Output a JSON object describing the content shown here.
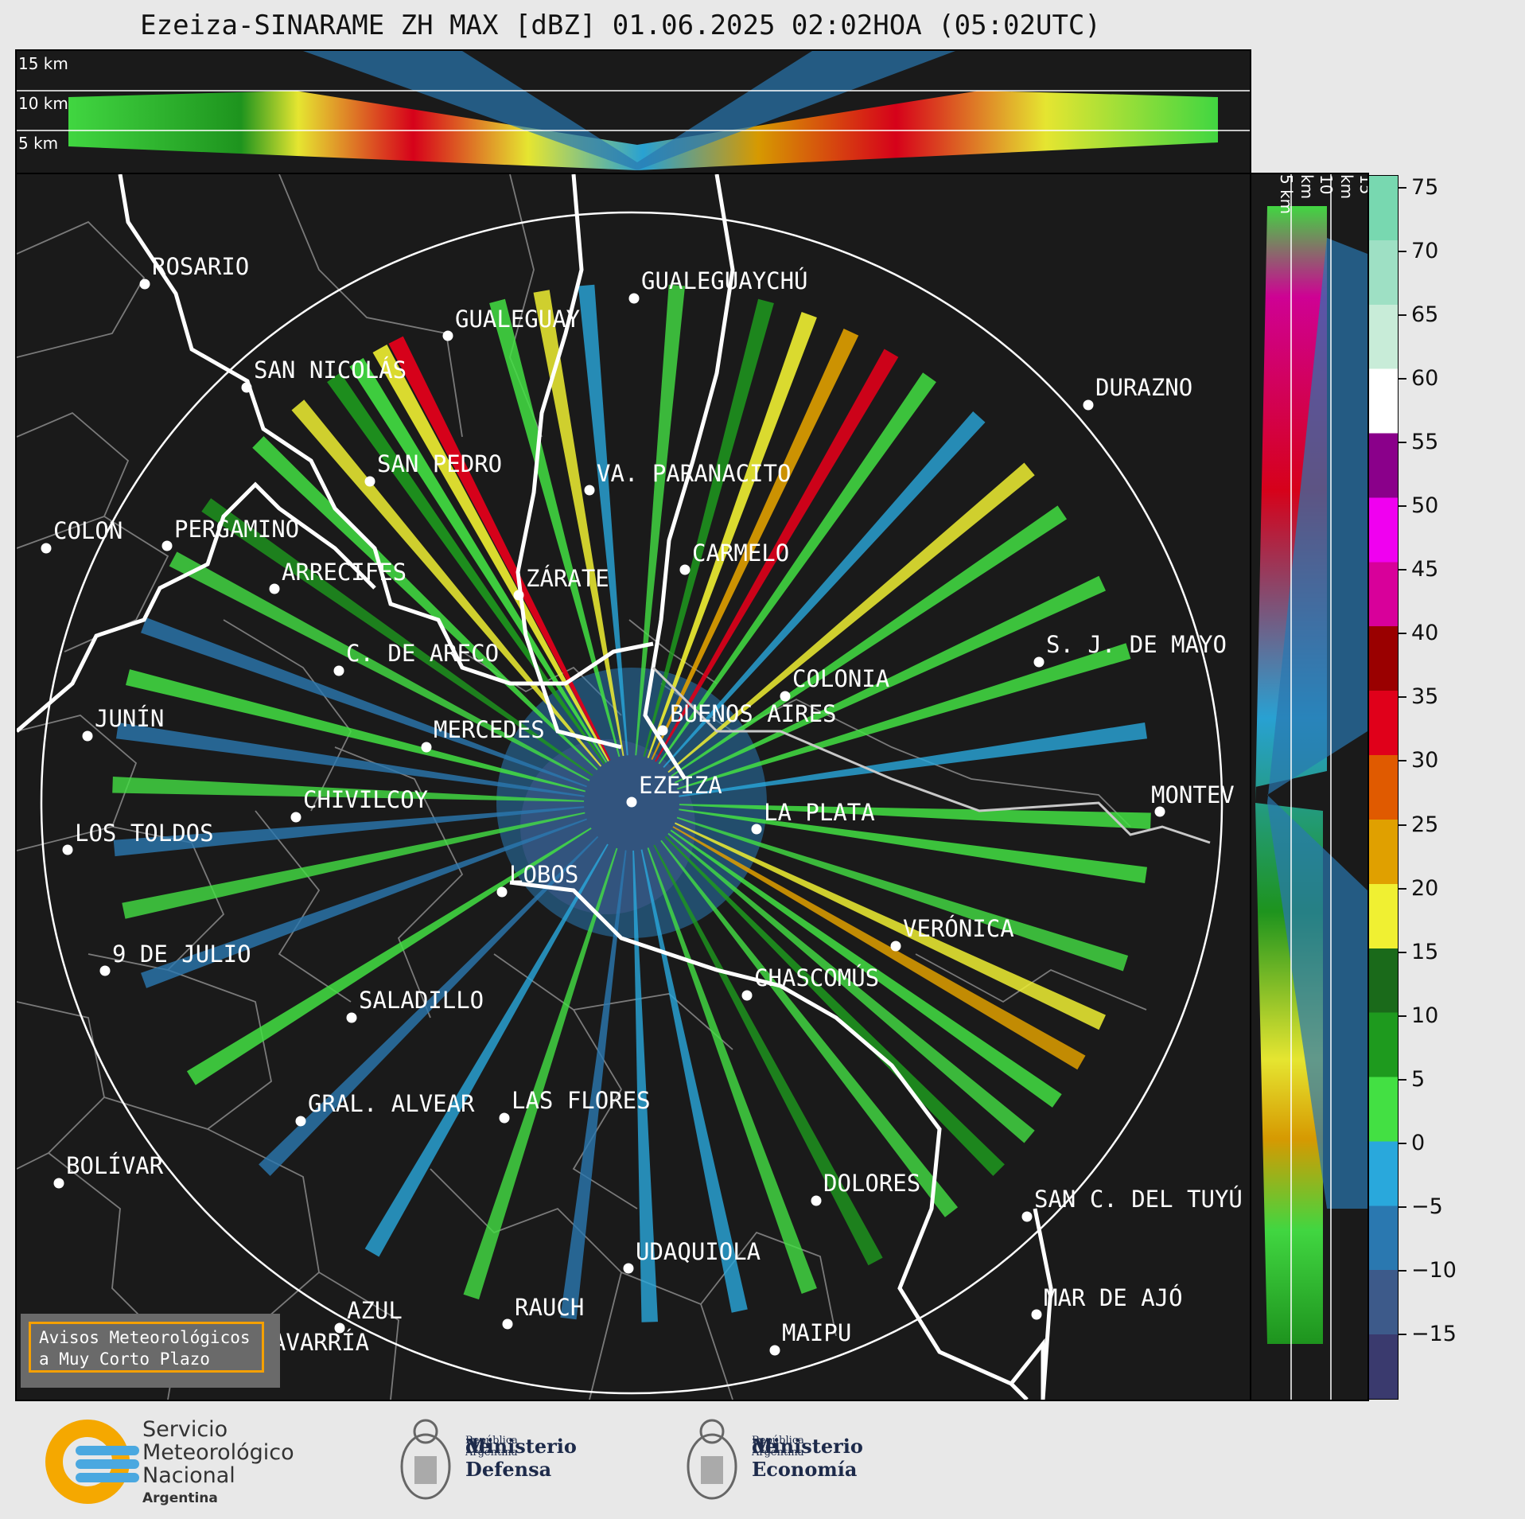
{
  "title": "Ezeiza-SINARAME ZH MAX [dBZ] 01.06.2025 02:02HOA (05:02UTC)",
  "height_labels": {
    "top": [
      "15 km",
      "10 km",
      "5 km"
    ],
    "side": [
      "5 km",
      "10 km",
      "15 km"
    ]
  },
  "colorbar": {
    "unit": "dBZ",
    "ticks": [
      "75",
      "70",
      "65",
      "60",
      "55",
      "50",
      "45",
      "40",
      "35",
      "30",
      "25",
      "20",
      "15",
      "10",
      "5",
      "0",
      "−5",
      "−10",
      "−15"
    ],
    "range": [
      -20,
      76
    ],
    "colors": [
      "#3a3a6e",
      "#3d5a8a",
      "#2a78b0",
      "#29a8dc",
      "#43e043",
      "#1e9a1e",
      "#1a6a1a",
      "#f0f032",
      "#e0a000",
      "#e05a00",
      "#e0001a",
      "#9a0000",
      "#d8009a",
      "#f000f0",
      "#8a008a",
      "#ffffff",
      "#c8ecd8",
      "#9ee0c4",
      "#78d8b0"
    ]
  },
  "cities": [
    {
      "name": "ROSARIO"
    },
    {
      "name": "GUALEGUAYCHÚ"
    },
    {
      "name": "GUALEGUAY"
    },
    {
      "name": "SAN NICOLÁS"
    },
    {
      "name": "DURAZNO"
    },
    {
      "name": "SAN PEDRO"
    },
    {
      "name": "VA. PARANACITO"
    },
    {
      "name": "COLON"
    },
    {
      "name": "PERGAMINO"
    },
    {
      "name": "CARMELO"
    },
    {
      "name": "ARRECIFES"
    },
    {
      "name": "ZÁRATE"
    },
    {
      "name": "S. J. DE MAYO"
    },
    {
      "name": "C. DE ARECO"
    },
    {
      "name": "COLONIA"
    },
    {
      "name": "BUENOS AIRES"
    },
    {
      "name": "JUNÍN"
    },
    {
      "name": "MERCEDES"
    },
    {
      "name": "EZEIZA"
    },
    {
      "name": "MONTEV"
    },
    {
      "name": "CHIVILCOY"
    },
    {
      "name": "LA PLATA"
    },
    {
      "name": "LOS TOLDOS"
    },
    {
      "name": "LOBOS"
    },
    {
      "name": "VERÓNICA"
    },
    {
      "name": "9 DE JULIO"
    },
    {
      "name": "CHASCOMÚS"
    },
    {
      "name": "SALADILLO"
    },
    {
      "name": "GRAL. ALVEAR"
    },
    {
      "name": "LAS FLORES"
    },
    {
      "name": "BOLÍVAR"
    },
    {
      "name": "DOLORES"
    },
    {
      "name": "SAN C. DEL TUYÚ"
    },
    {
      "name": "UDAQUIOLA"
    },
    {
      "name": "MAR DE AJÓ"
    },
    {
      "name": "AZUL"
    },
    {
      "name": "RAUCH"
    },
    {
      "name": "OLAVARRÍA"
    },
    {
      "name": "MAIPU"
    }
  ],
  "avisos": {
    "line1": "Avisos Meteorológicos",
    "line2": "a Muy Corto Plazo"
  },
  "logos": {
    "smn": [
      "Servicio",
      "Meteorológico",
      "Nacional",
      "Argentina"
    ],
    "defensa": [
      "Ministerio",
      "de Defensa",
      "República Argentina"
    ],
    "economia": [
      "Ministerio",
      "de Economía",
      "República Argentina"
    ]
  }
}
